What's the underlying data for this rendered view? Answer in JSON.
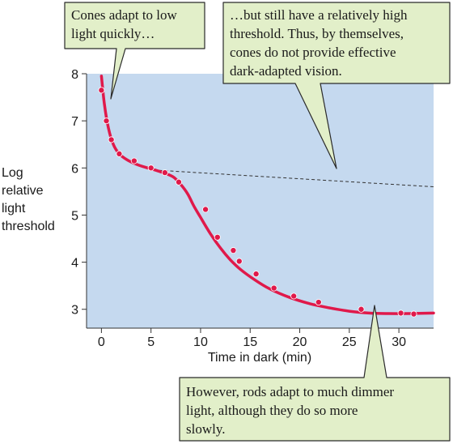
{
  "chart_data": {
    "type": "line",
    "title": "",
    "xlabel": "Time in dark (min)",
    "ylabel_lines": [
      "Log",
      "relative",
      "light",
      "threshold"
    ],
    "xlim": [
      -1.5,
      33.5
    ],
    "ylim": [
      2.6,
      8.0
    ],
    "xticks": [
      0,
      5,
      10,
      15,
      20,
      25,
      30
    ],
    "yticks": [
      3,
      4,
      5,
      6,
      7,
      8
    ],
    "x_tick_labels": [
      "0",
      "5",
      "10",
      "15",
      "20",
      "25",
      "30"
    ],
    "y_tick_labels": [
      "3",
      "4",
      "5",
      "6",
      "7",
      "8"
    ],
    "plot_background": "#c5d9ef",
    "curve_color": "#e0194a",
    "dashed_color": "#333333",
    "adaptation_curve": {
      "x": [
        0,
        0.3,
        0.7,
        1.2,
        1.8,
        2.6,
        3.5,
        4.5,
        5.5,
        6.5,
        7.3,
        8.0,
        8.7,
        9.3,
        10.0,
        11.0,
        12.0,
        13.0,
        14.0,
        15.5,
        17.0,
        19.0,
        21.0,
        23.0,
        25.0,
        27.0,
        29.0,
        31.0,
        33.5
      ],
      "y": [
        7.95,
        7.35,
        6.85,
        6.5,
        6.3,
        6.17,
        6.08,
        6.01,
        5.95,
        5.88,
        5.8,
        5.65,
        5.45,
        5.2,
        4.95,
        4.6,
        4.3,
        4.05,
        3.85,
        3.62,
        3.43,
        3.25,
        3.12,
        3.03,
        2.96,
        2.92,
        2.91,
        2.91,
        2.92
      ]
    },
    "data_points": {
      "x": [
        0.0,
        0.5,
        1.0,
        1.8,
        3.3,
        5.0,
        6.4,
        7.8,
        10.5,
        11.7,
        13.3,
        13.9,
        15.6,
        17.4,
        19.4,
        21.9,
        26.2,
        30.2,
        31.5
      ],
      "y": [
        7.65,
        7.0,
        6.6,
        6.3,
        6.15,
        6.0,
        5.9,
        5.7,
        5.12,
        4.53,
        4.25,
        4.02,
        3.75,
        3.45,
        3.28,
        3.15,
        3.0,
        2.92,
        2.9
      ]
    },
    "cone_threshold_extension": {
      "x": [
        5.8,
        33.5
      ],
      "y": [
        5.95,
        5.6
      ]
    }
  },
  "callouts": {
    "cones_fast": [
      "Cones adapt to low",
      "light quickly…"
    ],
    "cones_threshold": [
      "…but still have a relatively high",
      "threshold. Thus, by themselves,",
      "cones do not provide effective",
      "dark-adapted vision."
    ],
    "rods": [
      "However, rods adapt to much dimmer",
      "light, although they do so more",
      "slowly."
    ]
  },
  "colors": {
    "callout_fill": "#e2efc9",
    "callout_stroke": "#2a2a2a"
  }
}
